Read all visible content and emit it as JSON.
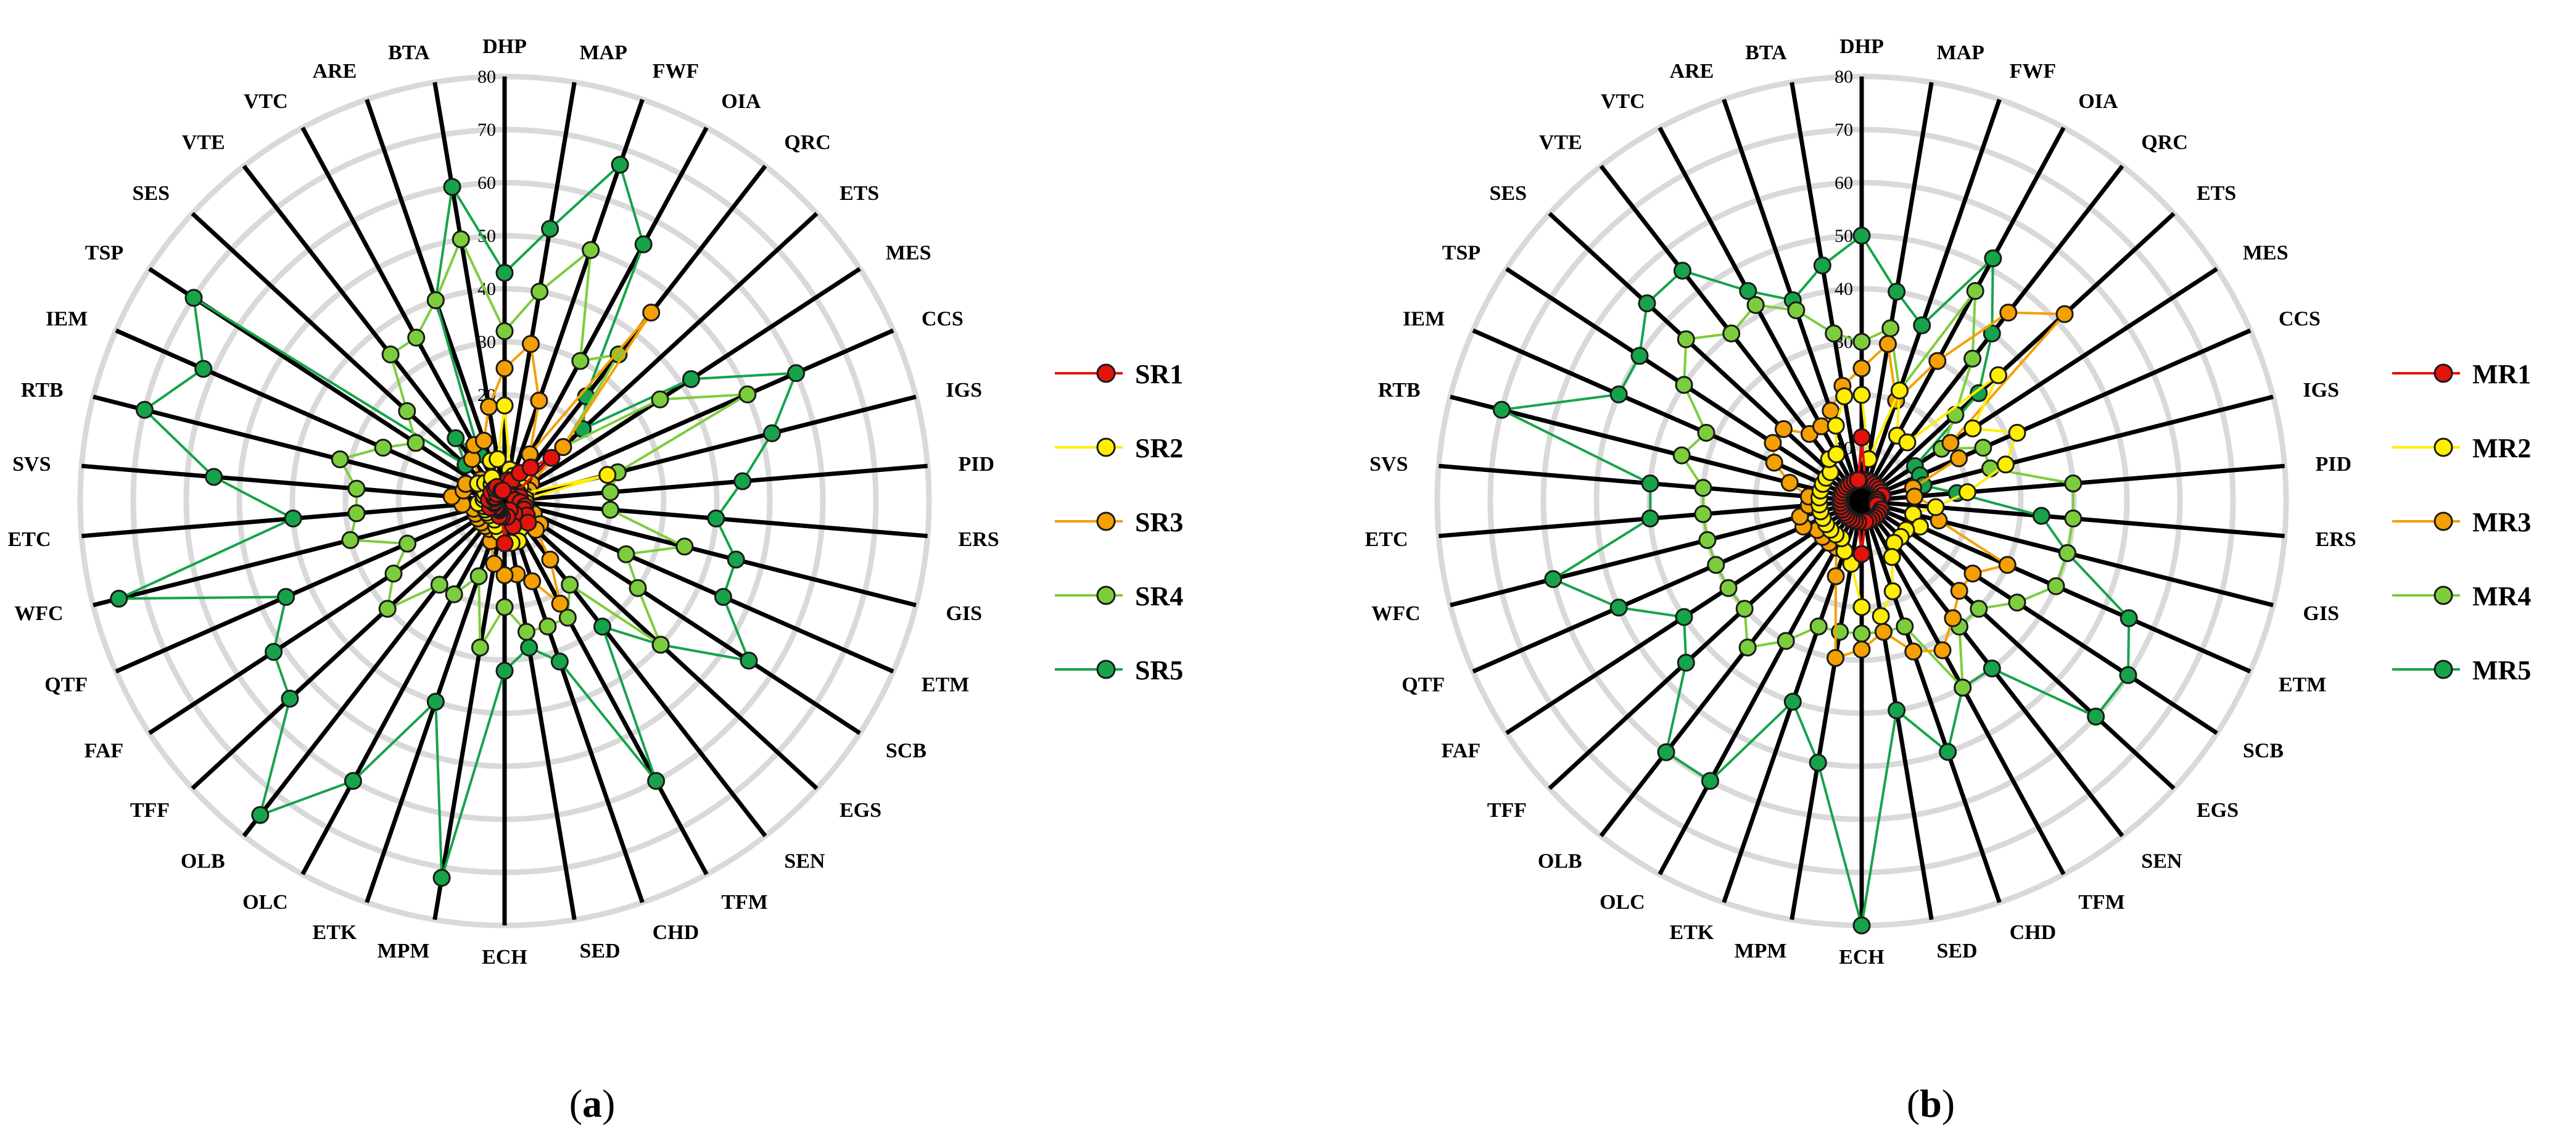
{
  "colors": {
    "R1": "#e3120b",
    "R2": "#ffee00",
    "R3": "#f5a000",
    "R4": "#7ccd3c",
    "R5": "#16a34a",
    "grid": "#d9d9d9",
    "spoke": "#000000"
  },
  "chart_data": [
    {
      "type": "radar",
      "panel_label": "a",
      "categories": [
        "DHP",
        "MAP",
        "FWF",
        "OIA",
        "QRC",
        "ETS",
        "MES",
        "CCS",
        "IGS",
        "PID",
        "ERS",
        "GIS",
        "ETM",
        "SCB",
        "EGS",
        "SEN",
        "TFM",
        "CHD",
        "SED",
        "ECH",
        "MPM",
        "ETK",
        "OLC",
        "OLB",
        "TFF",
        "FAF",
        "QTF",
        "WFC",
        "ETC",
        "SVS",
        "RTB",
        "IEM",
        "TSP",
        "SES",
        "VTE",
        "VTC",
        "ARE",
        "BTA"
      ],
      "rlim": [
        0,
        80
      ],
      "rticks": [
        10,
        20,
        30,
        40,
        50,
        60,
        70,
        80
      ],
      "grid": true,
      "legend_position": "right",
      "series": [
        {
          "name": "SR1",
          "values": [
            3,
            4,
            4,
            6,
            8,
            12,
            2,
            2,
            3,
            2,
            3,
            4,
            4,
            5,
            6,
            3,
            2,
            5,
            3,
            8,
            3,
            3,
            2,
            2,
            2,
            2,
            3,
            2,
            2,
            3,
            2,
            2,
            3,
            2,
            3,
            3,
            2,
            2
          ]
        },
        {
          "name": "SR2",
          "values": [
            18,
            6,
            5,
            5,
            6,
            4,
            3,
            3,
            20,
            4,
            4,
            4,
            4,
            5,
            5,
            5,
            6,
            8,
            8,
            8,
            6,
            5,
            4,
            3,
            4,
            4,
            4,
            4,
            5,
            4,
            4,
            4,
            6,
            5,
            4,
            5,
            8,
            8
          ]
        },
        {
          "name": "SR3",
          "values": [
            25,
            30,
            20,
            10,
            45,
            15,
            6,
            5,
            4,
            4,
            4,
            4,
            6,
            8,
            8,
            14,
            22,
            16,
            14,
            14,
            12,
            8,
            6,
            6,
            6,
            6,
            6,
            6,
            8,
            10,
            8,
            8,
            6,
            6,
            10,
            12,
            12,
            18
          ]
        },
        {
          "name": "SR4",
          "values": [
            32,
            40,
            50,
            30,
            35,
            15,
            35,
            50,
            22,
            20,
            20,
            35,
            25,
            30,
            40,
            20,
            25,
            25,
            25,
            20,
            28,
            15,
            20,
            20,
            30,
            25,
            20,
            30,
            28,
            28,
            32,
            25,
            20,
            25,
            35,
            35,
            40,
            50
          ]
        },
        {
          "name": "SR5",
          "values": [
            43,
            52,
            67,
            55,
            25,
            20,
            42,
            60,
            52,
            45,
            40,
            45,
            45,
            55,
            40,
            30,
            60,
            32,
            28,
            32,
            72,
            40,
            60,
            75,
            55,
            52,
            45,
            75,
            40,
            55,
            70,
            62,
            70,
            10,
            15,
            10,
            40,
            60
          ]
        }
      ]
    },
    {
      "type": "radar",
      "panel_label": "b",
      "categories": [
        "DHP",
        "MAP",
        "FWF",
        "OIA",
        "QRC",
        "ETS",
        "MES",
        "CCS",
        "IGS",
        "PID",
        "ERS",
        "GIS",
        "ETM",
        "SCB",
        "EGS",
        "SEN",
        "TFM",
        "CHD",
        "SED",
        "ECH",
        "MPM",
        "ETK",
        "OLC",
        "OLB",
        "TFF",
        "FAF",
        "QTF",
        "WFC",
        "ETC",
        "SVS",
        "RTB",
        "IEM",
        "TSP",
        "SES",
        "VTE",
        "VTC",
        "ARE",
        "BTA"
      ],
      "rlim": [
        0,
        80
      ],
      "rticks": [
        10,
        20,
        30,
        40,
        50,
        60,
        70,
        80
      ],
      "grid": true,
      "legend_position": "right",
      "series": [
        {
          "name": "MR1",
          "values": [
            12,
            4,
            4,
            4,
            4,
            4,
            4,
            4,
            4,
            3,
            3,
            3,
            4,
            4,
            4,
            4,
            4,
            4,
            4,
            10,
            4,
            4,
            4,
            4,
            4,
            4,
            4,
            4,
            4,
            4,
            4,
            4,
            4,
            4,
            4,
            4,
            4,
            4
          ]
        },
        {
          "name": "MR2",
          "values": [
            20,
            8,
            22,
            14,
            14,
            35,
            25,
            32,
            28,
            20,
            14,
            10,
            12,
            10,
            10,
            10,
            12,
            18,
            22,
            20,
            12,
            10,
            8,
            8,
            8,
            8,
            8,
            8,
            8,
            8,
            8,
            8,
            8,
            8,
            10,
            10,
            15,
            20
          ]
        },
        {
          "name": "MR3",
          "values": [
            25,
            30,
            20,
            30,
            45,
            52,
            20,
            20,
            10,
            10,
            14,
            15,
            30,
            25,
            25,
            28,
            32,
            30,
            25,
            28,
            30,
            15,
            10,
            10,
            10,
            10,
            12,
            12,
            10,
            10,
            14,
            18,
            20,
            20,
            16,
            16,
            18,
            22
          ]
        },
        {
          "name": "MR4",
          "values": [
            30,
            33,
            22,
            45,
            34,
            24,
            18,
            25,
            25,
            40,
            40,
            40,
            40,
            35,
            30,
            30,
            40,
            25,
            25,
            25,
            25,
            25,
            30,
            35,
            30,
            30,
            30,
            30,
            30,
            30,
            35,
            32,
            40,
            45,
            40,
            42,
            38,
            32
          ]
        },
        {
          "name": "MR5",
          "values": [
            50,
            40,
            35,
            52,
            40,
            30,
            12,
            12,
            12,
            18,
            34,
            40,
            55,
            60,
            60,
            40,
            40,
            50,
            40,
            80,
            50,
            40,
            60,
            60,
            45,
            40,
            50,
            60,
            40,
            40,
            70,
            50,
            50,
            55,
            55,
            45,
            40,
            45
          ]
        }
      ]
    }
  ]
}
